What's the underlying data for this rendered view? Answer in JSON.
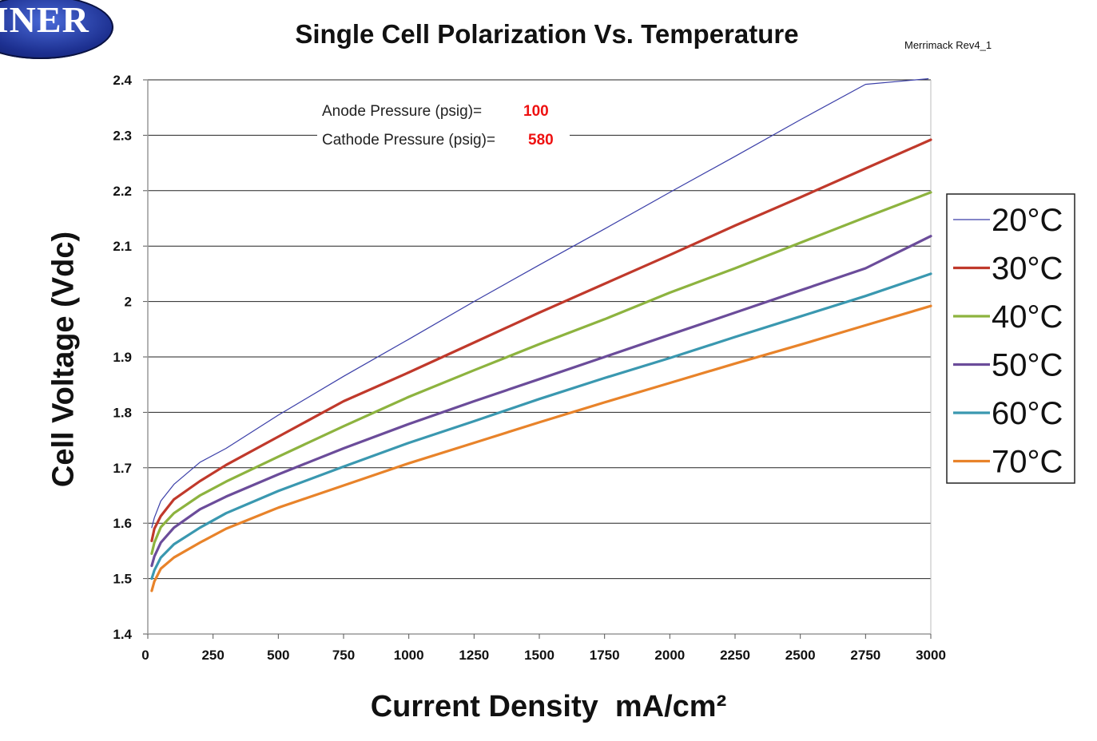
{
  "brand": {
    "logo_text": "GINER"
  },
  "revision_label": "Merrimack Rev4_1",
  "chart_data": {
    "type": "line",
    "title": "Single Cell Polarization Vs. Temperature",
    "xlabel": "Current Density  mA/cm²",
    "ylabel": "Cell Voltage (Vdc)",
    "xlim": [
      0,
      3000
    ],
    "ylim": [
      1.4,
      2.4
    ],
    "xticks": [
      0,
      250,
      500,
      750,
      1000,
      1250,
      1500,
      1750,
      2000,
      2250,
      2500,
      2750,
      3000
    ],
    "yticks": [
      1.4,
      1.5,
      1.6,
      1.7,
      1.8,
      1.9,
      2,
      2.1,
      2.2,
      2.3,
      2.4
    ],
    "ytick_labels": [
      "1.4",
      "1.5",
      "1.6",
      "1.7",
      "1.8",
      "1.9",
      "2",
      "2.1",
      "2.2",
      "2.3",
      "2.4"
    ],
    "grid": "horizontal",
    "legend_position": "right",
    "annotations": [
      {
        "label": "Anode Pressure  (psig)=",
        "value": "100"
      },
      {
        "label": "Cathode Pressure  (psig)=",
        "value": "580"
      }
    ],
    "series": [
      {
        "name": "20°C",
        "color": "#3b3fa8",
        "x": [
          15,
          25,
          50,
          100,
          200,
          300,
          500,
          750,
          1000,
          1250,
          1500,
          1750,
          2000,
          2250,
          2500,
          2750,
          2990
        ],
        "y": [
          1.592,
          1.61,
          1.64,
          1.67,
          1.71,
          1.735,
          1.795,
          1.865,
          1.932,
          2.0,
          2.066,
          2.131,
          2.197,
          2.262,
          2.328,
          2.392,
          2.402
        ]
      },
      {
        "name": "30°C",
        "color": "#c0392b",
        "x": [
          15,
          25,
          50,
          100,
          200,
          300,
          500,
          750,
          1000,
          1250,
          1500,
          1750,
          2000,
          2250,
          2500,
          2750,
          3000
        ],
        "y": [
          1.568,
          1.59,
          1.613,
          1.643,
          1.676,
          1.705,
          1.756,
          1.82,
          1.872,
          1.926,
          1.98,
          2.032,
          2.084,
          2.137,
          2.188,
          2.24,
          2.292
        ]
      },
      {
        "name": "40°C",
        "color": "#8db33f",
        "x": [
          15,
          25,
          50,
          100,
          200,
          300,
          500,
          750,
          1000,
          1250,
          1500,
          1750,
          2000,
          2250,
          2500,
          2750,
          3000
        ],
        "y": [
          1.545,
          1.565,
          1.593,
          1.618,
          1.65,
          1.675,
          1.72,
          1.775,
          1.828,
          1.876,
          1.923,
          1.968,
          2.016,
          2.06,
          2.106,
          2.152,
          2.197
        ]
      },
      {
        "name": "50°C",
        "color": "#6b4c9a",
        "x": [
          15,
          25,
          50,
          100,
          200,
          300,
          500,
          750,
          1000,
          1250,
          1500,
          1750,
          2000,
          2250,
          2500,
          2750,
          3000
        ],
        "y": [
          1.523,
          1.54,
          1.565,
          1.592,
          1.625,
          1.648,
          1.688,
          1.735,
          1.779,
          1.82,
          1.86,
          1.9,
          1.94,
          1.98,
          2.02,
          2.06,
          2.118
        ]
      },
      {
        "name": "60°C",
        "color": "#3a98b0",
        "x": [
          15,
          25,
          50,
          100,
          200,
          300,
          500,
          750,
          1000,
          1250,
          1500,
          1750,
          2000,
          2250,
          2500,
          2750,
          3000
        ],
        "y": [
          1.5,
          1.515,
          1.538,
          1.562,
          1.592,
          1.618,
          1.658,
          1.702,
          1.745,
          1.784,
          1.824,
          1.862,
          1.898,
          1.936,
          1.973,
          2.01,
          2.05
        ]
      },
      {
        "name": "70°C",
        "color": "#e8832a",
        "x": [
          15,
          25,
          50,
          100,
          200,
          300,
          500,
          750,
          1000,
          1250,
          1500,
          1750,
          2000,
          2250,
          2500,
          2750,
          3000
        ],
        "y": [
          1.478,
          1.495,
          1.518,
          1.538,
          1.565,
          1.59,
          1.628,
          1.668,
          1.708,
          1.745,
          1.782,
          1.818,
          1.853,
          1.888,
          1.922,
          1.957,
          1.992
        ]
      }
    ]
  }
}
